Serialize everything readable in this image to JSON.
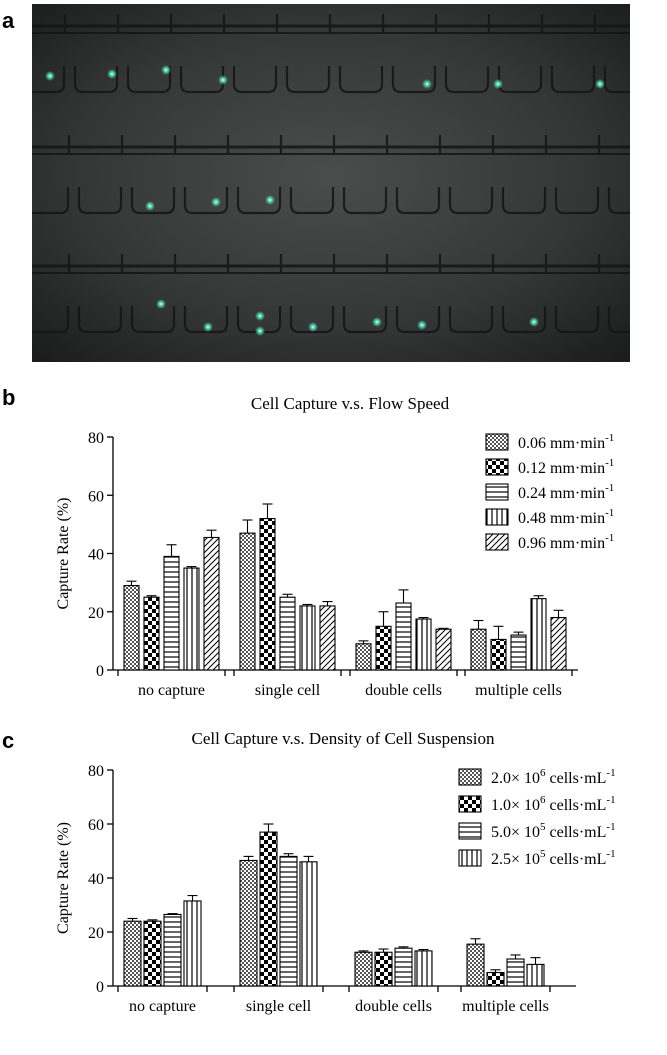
{
  "panels": {
    "a": "a",
    "b": "b",
    "c": "c"
  },
  "micrograph": {
    "cell_color": "#49e0b7"
  },
  "chart_data": [
    {
      "type": "bar",
      "title": "Cell Capture v.s. Flow Speed",
      "ylabel": "Capture Rate (%)",
      "xlabel": "",
      "ylim": [
        0,
        80
      ],
      "yticks": [
        0,
        20,
        40,
        60,
        80
      ],
      "grid": false,
      "legend_position": "top-right",
      "categories": [
        "no capture",
        "single cell",
        "double cells",
        "multiple cells"
      ],
      "series": [
        {
          "name": "0.06 mm·min",
          "unit_sup": "-1",
          "pattern": "crosshatch",
          "values": [
            29,
            47,
            9,
            14
          ],
          "errors": [
            1.5,
            4.5,
            1,
            3
          ]
        },
        {
          "name": "0.12 mm·min",
          "unit_sup": "-1",
          "pattern": "checker",
          "values": [
            25,
            52,
            15,
            10.5
          ],
          "errors": [
            0.5,
            5,
            5,
            4.5
          ]
        },
        {
          "name": "0.24 mm·min",
          "unit_sup": "-1",
          "pattern": "horizontal",
          "values": [
            39,
            25,
            23,
            12
          ],
          "errors": [
            4,
            1,
            4.5,
            1
          ]
        },
        {
          "name": "0.48 mm·min",
          "unit_sup": "-1",
          "pattern": "vertical",
          "values": [
            35,
            22,
            17.5,
            24.5
          ],
          "errors": [
            0.5,
            0.5,
            0.5,
            1
          ]
        },
        {
          "name": "0.96 mm·min",
          "unit_sup": "-1",
          "pattern": "diagonal",
          "values": [
            45.5,
            22,
            14,
            18
          ],
          "errors": [
            2.5,
            1.5,
            0.3,
            2.5
          ]
        }
      ]
    },
    {
      "type": "bar",
      "title": "Cell Capture v.s. Density of Cell Suspension",
      "ylabel": "Capture Rate (%)",
      "xlabel": "",
      "ylim": [
        0,
        80
      ],
      "yticks": [
        0,
        20,
        40,
        60,
        80
      ],
      "grid": false,
      "legend_position": "top-right",
      "categories": [
        "no capture",
        "single cell",
        "double cells",
        "multiple cells"
      ],
      "series": [
        {
          "name": "2.0× 10",
          "exp": "6",
          "unit": "cells·mL",
          "unit_sup": "-1",
          "pattern": "crosshatch",
          "values": [
            24,
            46.5,
            12.5,
            15.5
          ],
          "errors": [
            1,
            1.5,
            0.5,
            2
          ]
        },
        {
          "name": "1.0× 10",
          "exp": "6",
          "unit": "cells·mL",
          "unit_sup": "-1",
          "pattern": "checker",
          "values": [
            24,
            57,
            12.5,
            5
          ],
          "errors": [
            0.5,
            3,
            1.2,
            1
          ]
        },
        {
          "name": "5.0× 10",
          "exp": "5",
          "unit": "cells·mL",
          "unit_sup": "-1",
          "pattern": "horizontal",
          "values": [
            26.5,
            48,
            14,
            10
          ],
          "errors": [
            0.3,
            1,
            0.5,
            1.5
          ]
        },
        {
          "name": "2.5× 10",
          "exp": "5",
          "unit": "cells·mL",
          "unit_sup": "-1",
          "pattern": "vertical",
          "values": [
            31.5,
            46,
            13,
            8
          ],
          "errors": [
            2,
            2,
            0.5,
            2.5
          ]
        }
      ]
    }
  ]
}
